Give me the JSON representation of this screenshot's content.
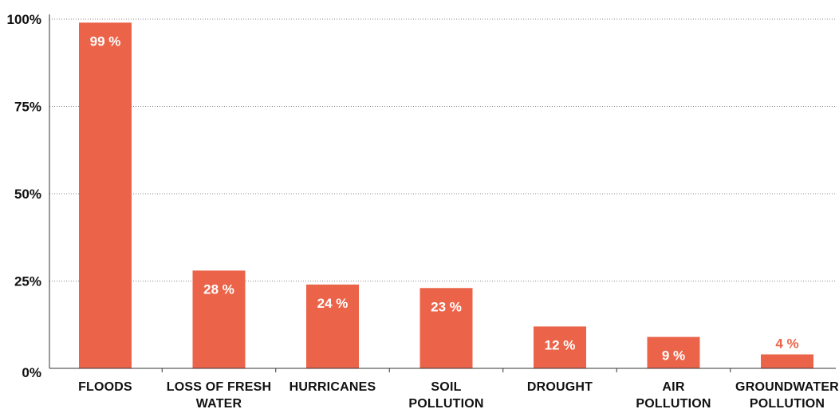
{
  "chart_data": {
    "type": "bar",
    "categories": [
      [
        "FLOODS"
      ],
      [
        "LOSS OF FRESH",
        "WATER"
      ],
      [
        "HURRICANES"
      ],
      [
        "SOIL",
        "POLLUTION"
      ],
      [
        "DROUGHT"
      ],
      [
        "AIR",
        "POLLUTION"
      ],
      [
        "GROUNDWATER",
        "POLLUTION"
      ]
    ],
    "values": [
      99,
      28,
      24,
      23,
      12,
      9,
      4
    ],
    "data_labels": [
      "99 %",
      "28 %",
      "24 %",
      "23 %",
      "12 %",
      "9 %",
      "4 %"
    ],
    "y_ticks": [
      {
        "value": 0,
        "label": "0%"
      },
      {
        "value": 25,
        "label": "25%"
      },
      {
        "value": 50,
        "label": "50%"
      },
      {
        "value": 75,
        "label": "75%"
      },
      {
        "value": 100,
        "label": "100%"
      }
    ],
    "ylim": [
      0,
      100
    ],
    "title": "",
    "xlabel": "",
    "ylabel": "",
    "grid": "dotted horizontal",
    "colors": {
      "bar": "#EB644A",
      "label_inside": "#ffffff",
      "label_outside": "#EB644A",
      "grid": "#888888",
      "axis": "#333333",
      "text": "#111111"
    }
  }
}
